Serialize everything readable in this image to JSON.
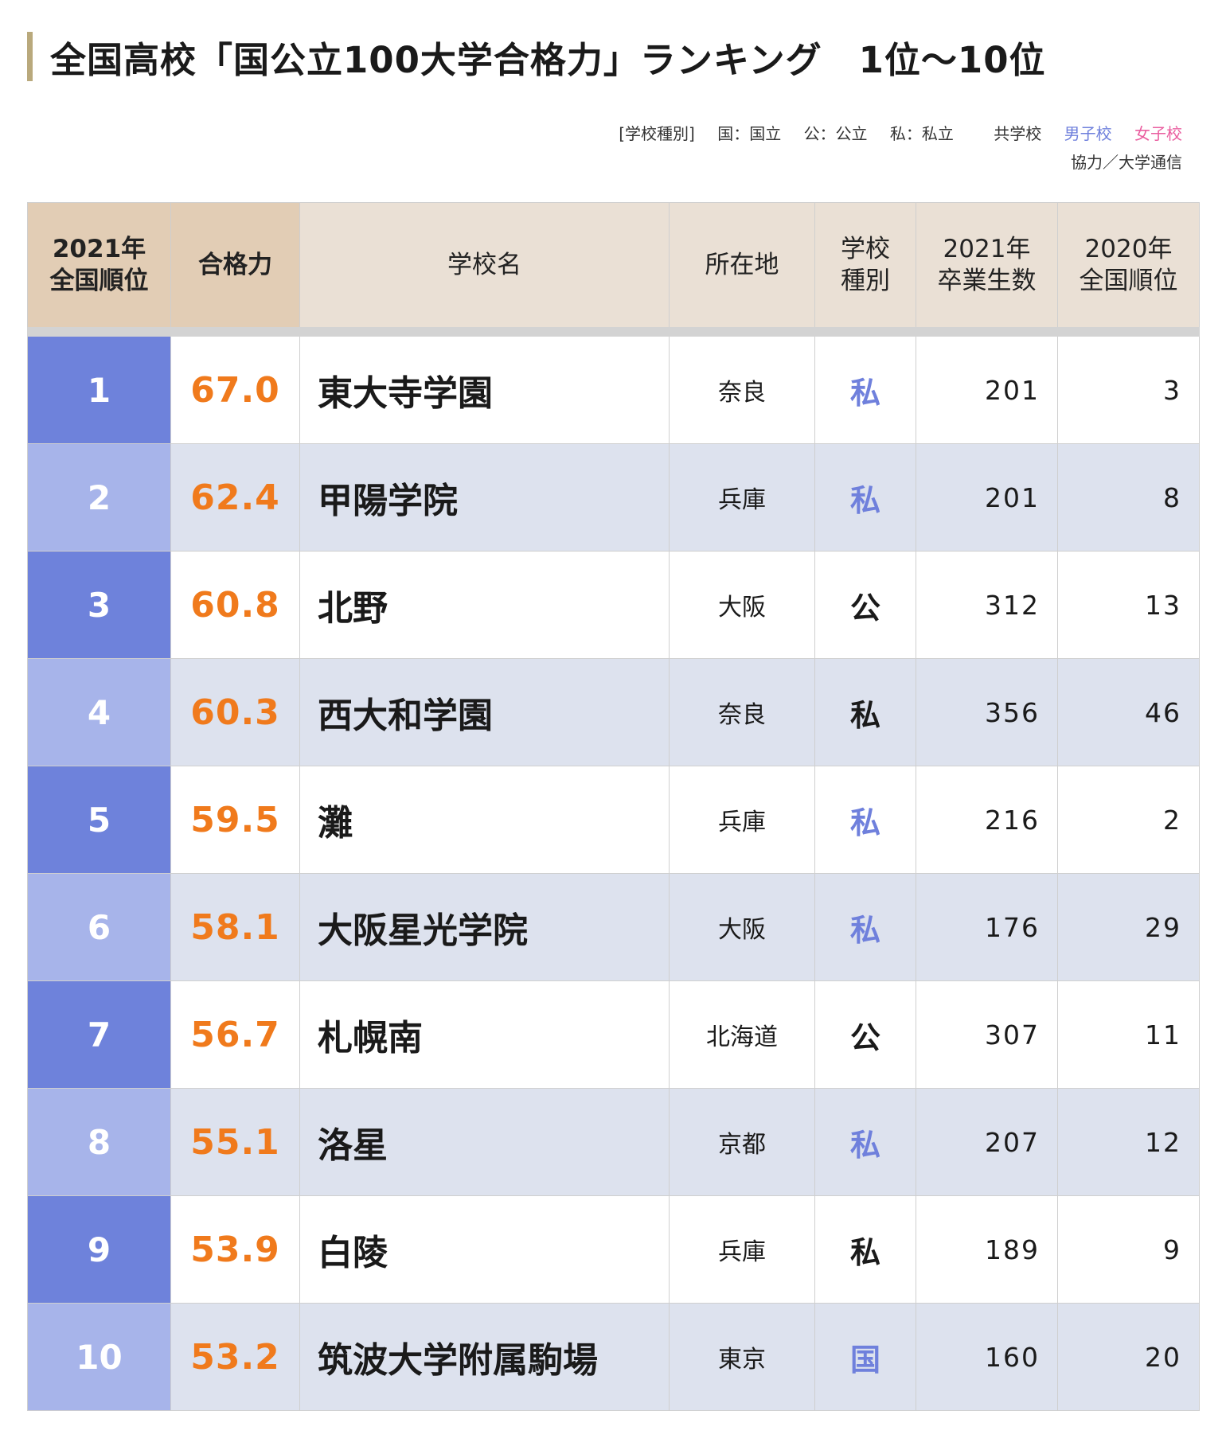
{
  "title": "全国高校「国公立100大学合格力」ランキング　1位〜10位",
  "legend": {
    "label": "[学校種別]",
    "kuni": "国：国立",
    "ko": "公：公立",
    "shi": "私：私立",
    "coed": "共学校",
    "boys": "男子校",
    "girls": "女子校"
  },
  "credit": "協力／大学通信",
  "colors": {
    "accent_bar": "#b9a97c",
    "rank_dark": "#6e82db",
    "rank_light": "#a7b4ea",
    "score": "#f07a1c",
    "boys": "#6f80dc",
    "girls": "#ea5fa0",
    "row_alt": "#dde2ee",
    "header": "#eae0d5",
    "header_highlight": "#e2cdb5"
  },
  "headers": {
    "rank": [
      "2021年",
      "全国順位"
    ],
    "score": "合格力",
    "name": "学校名",
    "location": "所在地",
    "type": [
      "学校",
      "種別"
    ],
    "graduates": [
      "2021年",
      "卒業生数"
    ],
    "prev_rank": [
      "2020年",
      "全国順位"
    ]
  },
  "rows": [
    {
      "rank": "1",
      "score": "67.0",
      "name": "東大寺学園",
      "location": "奈良",
      "type": "私",
      "gender": "boys",
      "graduates": "201",
      "prev_rank": "3"
    },
    {
      "rank": "2",
      "score": "62.4",
      "name": "甲陽学院",
      "location": "兵庫",
      "type": "私",
      "gender": "boys",
      "graduates": "201",
      "prev_rank": "8"
    },
    {
      "rank": "3",
      "score": "60.8",
      "name": "北野",
      "location": "大阪",
      "type": "公",
      "gender": "coed",
      "graduates": "312",
      "prev_rank": "13"
    },
    {
      "rank": "4",
      "score": "60.3",
      "name": "西大和学園",
      "location": "奈良",
      "type": "私",
      "gender": "coed",
      "graduates": "356",
      "prev_rank": "46"
    },
    {
      "rank": "5",
      "score": "59.5",
      "name": "灘",
      "location": "兵庫",
      "type": "私",
      "gender": "boys",
      "graduates": "216",
      "prev_rank": "2"
    },
    {
      "rank": "6",
      "score": "58.1",
      "name": "大阪星光学院",
      "location": "大阪",
      "type": "私",
      "gender": "boys",
      "graduates": "176",
      "prev_rank": "29"
    },
    {
      "rank": "7",
      "score": "56.7",
      "name": "札幌南",
      "location": "北海道",
      "type": "公",
      "gender": "coed",
      "graduates": "307",
      "prev_rank": "11"
    },
    {
      "rank": "8",
      "score": "55.1",
      "name": "洛星",
      "location": "京都",
      "type": "私",
      "gender": "boys",
      "graduates": "207",
      "prev_rank": "12"
    },
    {
      "rank": "9",
      "score": "53.9",
      "name": "白陵",
      "location": "兵庫",
      "type": "私",
      "gender": "coed",
      "graduates": "189",
      "prev_rank": "9"
    },
    {
      "rank": "10",
      "score": "53.2",
      "name": "筑波大学附属駒場",
      "location": "東京",
      "type": "国",
      "gender": "boys",
      "graduates": "160",
      "prev_rank": "20"
    }
  ]
}
